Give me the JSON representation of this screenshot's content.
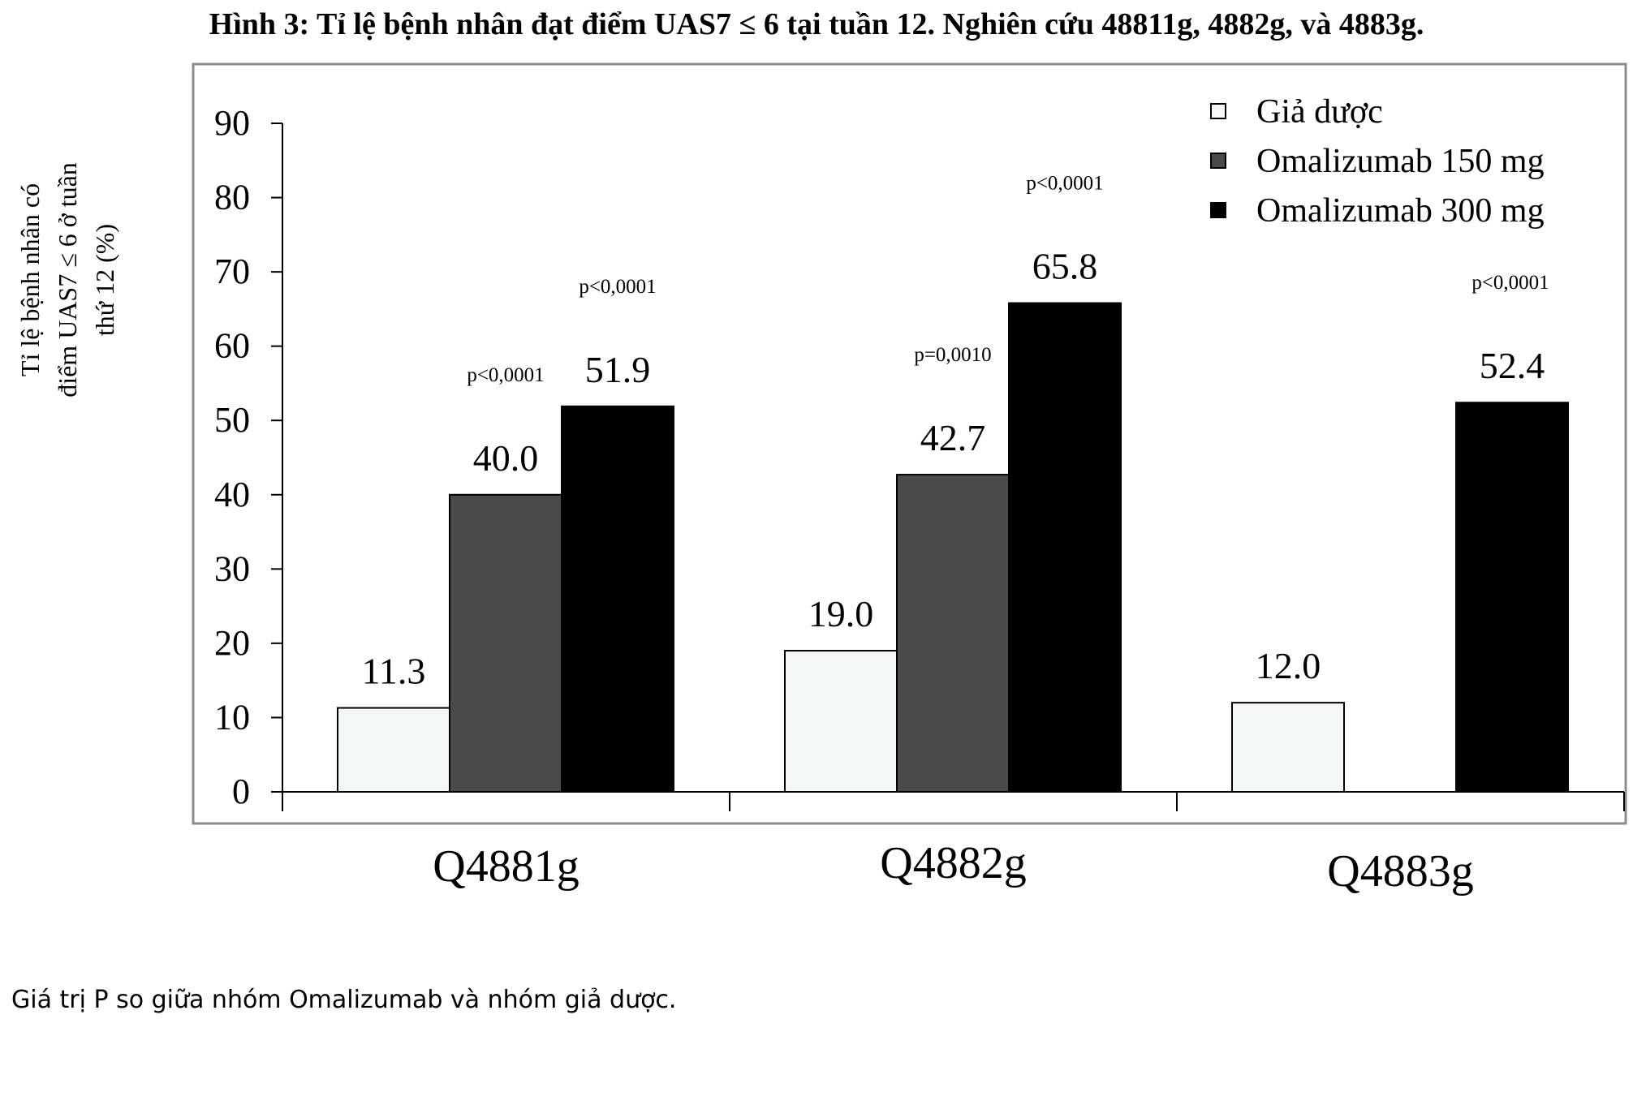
{
  "figure_title": "Hình 3: Tỉ lệ bệnh nhân đạt điểm UAS7 ≤ 6 tại tuần 12. Nghiên cứu 48811g, 4882g, và 4883g.",
  "footnote": "Giá trị P so giữa nhóm Omalizumab và nhóm giả dược.",
  "colors": {
    "placebo": "#f5f6f6",
    "omalizumab_150": "#4a4a4a",
    "omalizumab_300": "#000000",
    "frame": "#8c8c8c"
  },
  "chart_data": {
    "type": "bar",
    "categories": [
      "Q4881g",
      "Q4882g",
      "Q4883g"
    ],
    "ylabel_lines": [
      "Tỉ lệ bệnh nhân có",
      "điểm UAS7 ≤ 6 ở tuần",
      "thứ 12 (%)"
    ],
    "ylim": [
      0,
      90
    ],
    "yticks": [
      0,
      10,
      20,
      30,
      40,
      50,
      60,
      70,
      80,
      90
    ],
    "grid": false,
    "legend_position": "top-right",
    "series": [
      {
        "name": "Giả dược",
        "values": [
          11.3,
          19.0,
          12.0
        ],
        "labels": [
          "11.3",
          "19.0",
          "12.0"
        ],
        "p_values": [
          "",
          "",
          ""
        ]
      },
      {
        "name": "Omalizumab 150 mg",
        "values": [
          40.0,
          42.7,
          null
        ],
        "labels": [
          "40.0",
          "42.7",
          ""
        ],
        "p_values": [
          "p<0,0001",
          "p=0,0010",
          ""
        ]
      },
      {
        "name": "Omalizumab 300 mg",
        "values": [
          51.9,
          65.8,
          52.4
        ],
        "labels": [
          "51.9",
          "65.8",
          "52.4"
        ],
        "p_values": [
          "p<0,0001",
          "p<0,0001",
          "p<0,0001"
        ]
      }
    ]
  }
}
